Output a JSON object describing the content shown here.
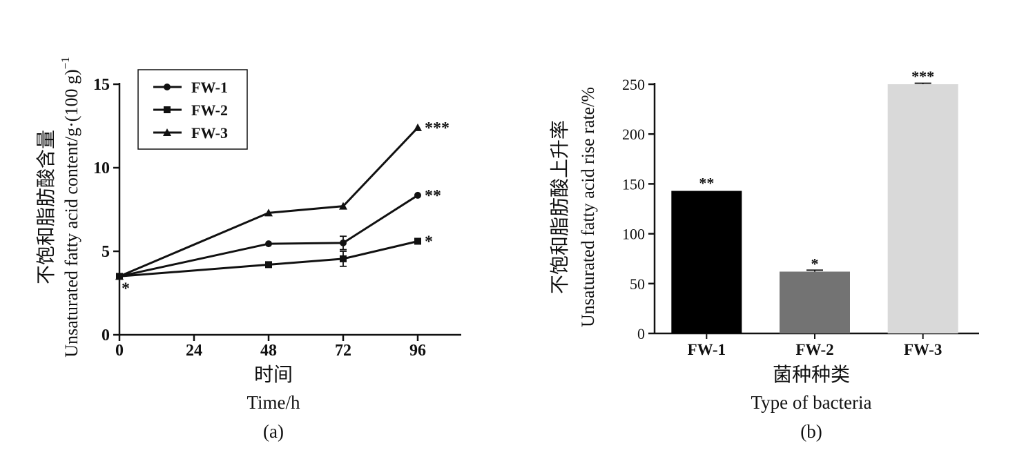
{
  "charts": [
    {
      "panel": "(a)",
      "ylabel_cn": "不饱和脂肪酸含量",
      "ylabel_en": "Unsaturated fatty acid content/g·(100 g)",
      "ylabel_sup": "−1",
      "xlabel_cn": "时间",
      "xlabel_en": "Time/h"
    },
    {
      "panel": "(b)",
      "ylabel_cn": "不饱和脂肪酸上升率",
      "ylabel_en": "Unsaturated fatty acid rise rate/%",
      "xlabel_cn": "菌种种类",
      "xlabel_en": "Type of bacteria"
    }
  ],
  "chart_data": [
    {
      "type": "line",
      "x": [
        0,
        48,
        72,
        96
      ],
      "xticks": [
        "0",
        "24",
        "48",
        "72",
        "96"
      ],
      "xtick_values": [
        0,
        24,
        48,
        72,
        96
      ],
      "xlim": [
        0,
        110
      ],
      "yticks": [
        "0",
        "5",
        "10",
        "15"
      ],
      "ytick_values": [
        0,
        5,
        10,
        15
      ],
      "ylim": [
        0,
        15
      ],
      "legend_position": "top-left",
      "series": [
        {
          "name": "FW-1",
          "marker": "circle",
          "values": [
            3.5,
            5.45,
            5.5,
            8.35
          ],
          "errors": [
            0,
            0,
            0.4,
            0
          ],
          "end_annotation": "**",
          "color": "#111111"
        },
        {
          "name": "FW-2",
          "marker": "square",
          "values": [
            3.5,
            4.2,
            4.55,
            5.6
          ],
          "errors": [
            0,
            0,
            0.45,
            0
          ],
          "end_annotation": "*",
          "color": "#111111"
        },
        {
          "name": "FW-3",
          "marker": "triangle",
          "values": [
            3.5,
            7.3,
            7.7,
            12.4
          ],
          "errors": [
            0,
            0,
            0,
            0
          ],
          "end_annotation": "***",
          "color": "#111111"
        }
      ],
      "start_annotation": "*"
    },
    {
      "type": "bar",
      "categories": [
        "FW-1",
        "FW-2",
        "FW-3"
      ],
      "values": [
        143,
        62,
        250
      ],
      "errors": [
        0,
        1.5,
        1
      ],
      "annotations": [
        "**",
        "*",
        "***"
      ],
      "colors": [
        "#000000",
        "#737373",
        "#d9d9d9"
      ],
      "yticks": [
        "0",
        "50",
        "100",
        "150",
        "200",
        "250"
      ],
      "ytick_values": [
        0,
        50,
        100,
        150,
        200,
        250
      ],
      "ylim": [
        0,
        250
      ]
    }
  ]
}
